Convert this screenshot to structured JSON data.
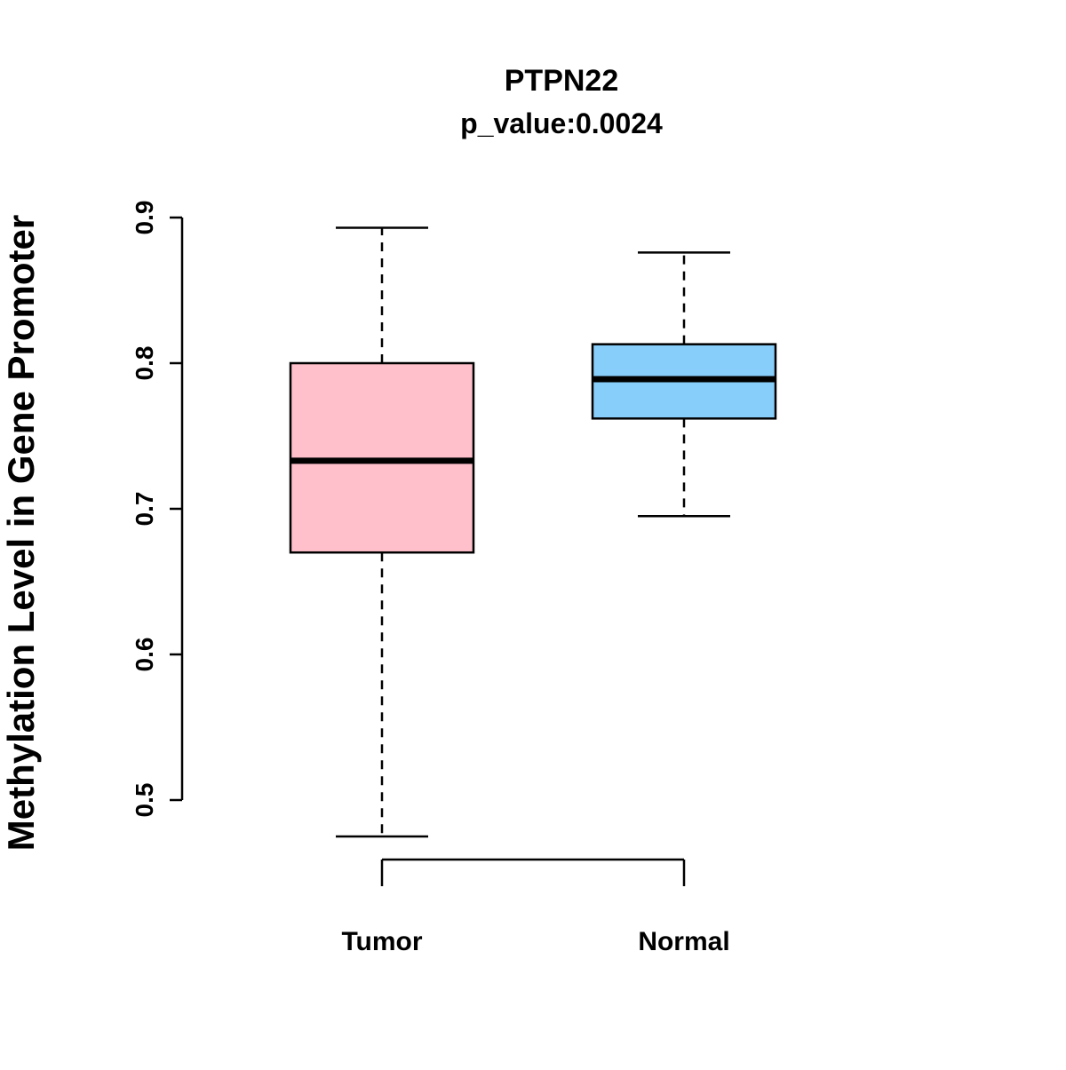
{
  "chart_data": {
    "type": "boxplot",
    "title": "PTPN22",
    "subtitle": "p_value:0.0024",
    "ylabel": "Methylation Level in Gene Promoter",
    "xlabel": "",
    "yticks": [
      0.5,
      0.6,
      0.7,
      0.8,
      0.9
    ],
    "ylim": [
      0.45,
      0.92
    ],
    "grid": false,
    "legend": "none",
    "groups": [
      {
        "label": "Tumor",
        "color": "#FFC0CB",
        "whisker_low": 0.475,
        "q1": 0.67,
        "median": 0.733,
        "q3": 0.8,
        "whisker_high": 0.893
      },
      {
        "label": "Normal",
        "color": "#87CEFA",
        "whisker_low": 0.695,
        "q1": 0.762,
        "median": 0.789,
        "q3": 0.813,
        "whisker_high": 0.876
      }
    ]
  }
}
